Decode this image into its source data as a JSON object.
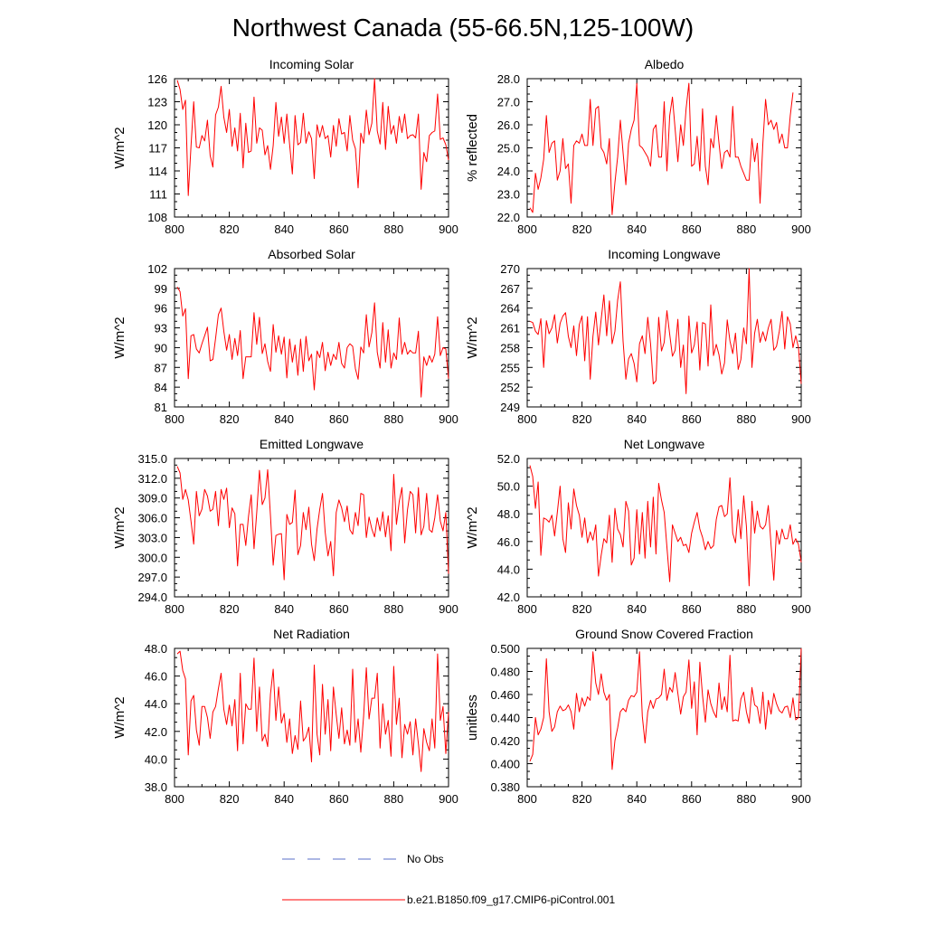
{
  "title": "Northwest Canada (55-66.5N,125-100W)",
  "legend": {
    "no_obs": {
      "label": "No Obs",
      "color": "#5a6fc8",
      "style": "dashed"
    },
    "model": {
      "label": "b.e21.B1850.f09_g17.CMIP6-piControl.001",
      "color": "#ff0000",
      "style": "solid"
    }
  },
  "chart_data": [
    {
      "type": "line",
      "title": "Incoming Solar",
      "xlabel": "",
      "ylabel": "W/m^2",
      "xlim": [
        800,
        900
      ],
      "ylim": [
        108,
        126
      ],
      "xticks": [
        800,
        820,
        840,
        860,
        880,
        900
      ],
      "xtick_labels": [
        "800",
        "820",
        "840",
        "860",
        "880",
        "900"
      ],
      "yticks": [
        108,
        111,
        114,
        117,
        120,
        123,
        126
      ],
      "ytick_labels": [
        "108",
        "111",
        "114",
        "117",
        "120",
        "123",
        "126"
      ],
      "x_start": 801,
      "values": [
        125.8,
        124.6,
        122.0,
        123.2,
        110.8,
        117.2,
        123.0,
        117.1,
        117.0,
        118.6,
        117.9,
        120.6,
        116.0,
        114.5,
        121.3,
        122.3,
        125.0,
        121.0,
        119.0,
        122.0,
        117.2,
        119.6,
        116.6,
        121.5,
        114.4,
        120.2,
        116.4,
        116.6,
        123.6,
        117.6,
        119.6,
        119.3,
        116.1,
        117.3,
        114.2,
        117.3,
        122.9,
        118.5,
        121.0,
        117.6,
        121.4,
        117.4,
        113.6,
        121.2,
        117.4,
        117.7,
        121.5,
        117.6,
        119.1,
        118.2,
        113.0,
        120.0,
        118.4,
        119.9,
        118.2,
        118.6,
        115.8,
        119.9,
        117.2,
        120.8,
        118.8,
        119.0,
        116.6,
        121.2,
        118.0,
        116.9,
        111.8,
        118.9,
        117.6,
        121.9,
        118.7,
        120.2,
        126.0,
        119.2,
        117.5,
        122.9,
        116.8,
        122.4,
        118.8,
        119.9,
        117.6,
        121.1,
        119.0,
        121.4,
        118.2,
        118.6,
        118.7,
        118.3,
        121.4,
        111.6,
        116.4,
        115.2,
        118.6,
        119.0,
        119.2,
        124.0,
        118.1,
        118.3,
        117.4,
        115.4
      ]
    },
    {
      "type": "line",
      "title": "Albedo",
      "xlabel": "",
      "ylabel": "% reflected",
      "xlim": [
        800,
        900
      ],
      "ylim": [
        22,
        28
      ],
      "xticks": [
        800,
        820,
        840,
        860,
        880,
        900
      ],
      "xtick_labels": [
        "800",
        "820",
        "840",
        "860",
        "880",
        "900"
      ],
      "yticks": [
        22,
        23,
        24,
        25,
        26,
        27,
        28
      ],
      "ytick_labels": [
        "22.0",
        "23.0",
        "24.0",
        "25.0",
        "26.0",
        "27.0",
        "28.0"
      ],
      "x_start": 801,
      "values": [
        22.4,
        22.2,
        23.9,
        23.2,
        23.7,
        24.5,
        26.4,
        24.8,
        25.2,
        25.3,
        23.6,
        24.0,
        25.4,
        24.1,
        24.3,
        22.6,
        25.1,
        25.3,
        25.2,
        25.6,
        25.1,
        25.1,
        27.1,
        25.1,
        26.7,
        26.8,
        25.0,
        24.8,
        24.3,
        25.4,
        22.1,
        23.5,
        24.6,
        26.2,
        24.8,
        23.4,
        25.2,
        25.8,
        26.2,
        27.8,
        25.1,
        25.0,
        24.8,
        24.6,
        24.2,
        25.8,
        26.0,
        24.6,
        24.6,
        27.0,
        24.0,
        26.4,
        27.2,
        25.8,
        24.4,
        26.0,
        25.1,
        26.7,
        27.8,
        24.2,
        24.3,
        25.5,
        24.0,
        26.7,
        24.2,
        23.4,
        25.4,
        25.0,
        26.4,
        25.2,
        24.1,
        24.8,
        24.9,
        24.6,
        26.8,
        24.6,
        24.6,
        24.2,
        23.9,
        23.6,
        23.6,
        25.4,
        24.4,
        25.2,
        22.6,
        25.2,
        27.1,
        26.0,
        26.2,
        25.8,
        26.1,
        25.2,
        25.6,
        25.0,
        25.0,
        26.4,
        27.4
      ]
    },
    {
      "type": "line",
      "title": "Absorbed Solar",
      "xlabel": "",
      "ylabel": "W/m^2",
      "xlim": [
        800,
        900
      ],
      "ylim": [
        81,
        102
      ],
      "xticks": [
        800,
        820,
        840,
        860,
        880,
        900
      ],
      "xtick_labels": [
        "800",
        "820",
        "840",
        "860",
        "880",
        "900"
      ],
      "yticks": [
        81,
        84,
        87,
        90,
        93,
        96,
        99,
        102
      ],
      "ytick_labels": [
        "81",
        "84",
        "87",
        "90",
        "93",
        "96",
        "99",
        "102"
      ],
      "x_start": 801,
      "values": [
        99.2,
        98.5,
        94.8,
        95.9,
        85.3,
        91.8,
        92.0,
        89.8,
        89.2,
        90.6,
        91.8,
        93.1,
        88.0,
        88.2,
        91.4,
        95.0,
        96.0,
        92.5,
        89.6,
        92.0,
        88.2,
        91.4,
        88.8,
        92.6,
        85.3,
        88.6,
        88.6,
        88.6,
        95.3,
        90.5,
        94.6,
        89.1,
        90.6,
        87.9,
        86.4,
        93.5,
        89.3,
        91.8,
        89.0,
        91.6,
        85.4,
        91.3,
        87.8,
        90.4,
        85.8,
        91.3,
        86.4,
        91.7,
        88.0,
        89.0,
        83.6,
        89.5,
        88.5,
        90.8,
        86.5,
        89.3,
        87.3,
        89.0,
        88.2,
        90.8,
        87.6,
        86.9,
        90.0,
        90.6,
        90.2,
        86.8,
        85.2,
        90.1,
        89.2,
        95.0,
        90.1,
        92.3,
        96.8,
        89.3,
        86.9,
        93.8,
        87.8,
        92.7,
        86.9,
        89.2,
        88.2,
        94.5,
        89.0,
        90.8,
        89.0,
        89.6,
        89.2,
        89.2,
        92.5,
        82.5,
        88.6,
        87.3,
        88.8,
        87.8,
        89.0,
        94.7,
        88.8,
        90.0,
        89.8,
        85.3
      ]
    },
    {
      "type": "line",
      "title": "Incoming Longwave",
      "xlabel": "",
      "ylabel": "W/m^2",
      "xlim": [
        800,
        900
      ],
      "ylim": [
        249,
        270
      ],
      "xticks": [
        800,
        820,
        840,
        860,
        880,
        900
      ],
      "xtick_labels": [
        "800",
        "820",
        "840",
        "860",
        "880",
        "900"
      ],
      "yticks": [
        249,
        252,
        255,
        258,
        261,
        264,
        267,
        270
      ],
      "ytick_labels": [
        "249",
        "252",
        "255",
        "258",
        "261",
        "264",
        "267",
        "270"
      ],
      "x_start": 801,
      "values": [
        262.0,
        261.8,
        260.5,
        260.0,
        262.4,
        255.0,
        262.1,
        260.1,
        261.0,
        263.0,
        258.7,
        261.7,
        262.8,
        263.3,
        259.7,
        258.0,
        261.3,
        256.8,
        261.5,
        262.8,
        256.0,
        262.7,
        253.2,
        259.7,
        263.4,
        258.4,
        262.3,
        266.0,
        259.8,
        265.1,
        258.6,
        260.5,
        265.2,
        268.0,
        259.0,
        253.2,
        256.3,
        257.1,
        255.6,
        252.8,
        258.6,
        259.8,
        257.1,
        262.6,
        258.6,
        252.5,
        253.0,
        262.6,
        257.5,
        258.8,
        263.6,
        260.0,
        256.7,
        257.6,
        262.3,
        255.0,
        258.4,
        251.0,
        262.8,
        257.2,
        258.4,
        261.9,
        254.6,
        261.8,
        261.6,
        255.2,
        264.5,
        256.8,
        258.5,
        256.9,
        254.0,
        255.7,
        262.2,
        259.0,
        257.1,
        260.2,
        254.7,
        256.2,
        261.0,
        258.6,
        270.0,
        255.0,
        260.2,
        262.3,
        258.8,
        260.4,
        259.0,
        261.0,
        262.3,
        257.6,
        258.2,
        260.5,
        263.5,
        257.8,
        262.7,
        261.6,
        258.0,
        259.8,
        258.0,
        252.5
      ]
    },
    {
      "type": "line",
      "title": "Emitted Longwave",
      "xlabel": "",
      "ylabel": "W/m^2",
      "xlim": [
        800,
        900
      ],
      "ylim": [
        294,
        315
      ],
      "xticks": [
        800,
        820,
        840,
        860,
        880,
        900
      ],
      "xtick_labels": [
        "800",
        "820",
        "840",
        "860",
        "880",
        "900"
      ],
      "yticks": [
        294,
        297,
        300,
        303,
        306,
        309,
        312,
        315
      ],
      "ytick_labels": [
        "294.0",
        "297.0",
        "300.0",
        "303.0",
        "306.0",
        "309.0",
        "312.0",
        "315.0"
      ],
      "x_start": 801,
      "values": [
        313.8,
        312.8,
        308.8,
        310.3,
        308.7,
        305.5,
        302.0,
        310.0,
        306.3,
        307.3,
        310.3,
        309.3,
        307.0,
        307.3,
        310.0,
        304.8,
        310.3,
        308.8,
        310.5,
        304.5,
        307.5,
        306.6,
        298.7,
        305.0,
        305.0,
        301.8,
        306.2,
        309.5,
        301.3,
        306.8,
        313.2,
        308.0,
        309.0,
        313.3,
        306.3,
        298.8,
        303.3,
        303.5,
        303.6,
        296.6,
        306.5,
        305.0,
        305.3,
        310.2,
        300.4,
        301.8,
        306.8,
        304.2,
        307.6,
        302.0,
        299.5,
        304.3,
        307.3,
        309.7,
        303.8,
        300.2,
        302.4,
        297.2,
        306.8,
        308.7,
        307.5,
        305.4,
        307.8,
        304.2,
        303.5,
        306.8,
        304.8,
        309.7,
        309.5,
        303.0,
        306.1,
        304.3,
        303.1,
        306.0,
        304.0,
        306.9,
        303.1,
        306.3,
        301.0,
        312.6,
        305.0,
        308.5,
        310.6,
        302.2,
        307.2,
        310.0,
        309.5,
        303.7,
        310.6,
        303.4,
        304.7,
        309.7,
        304.2,
        303.8,
        306.0,
        309.5,
        305.5,
        304.0,
        306.8,
        297.5
      ]
    },
    {
      "type": "line",
      "title": "Net Longwave",
      "xlabel": "",
      "ylabel": "W/m^2",
      "xlim": [
        800,
        900
      ],
      "ylim": [
        42,
        52
      ],
      "xticks": [
        800,
        820,
        840,
        860,
        880,
        900
      ],
      "xtick_labels": [
        "800",
        "820",
        "840",
        "860",
        "880",
        "900"
      ],
      "yticks": [
        42,
        44,
        46,
        48,
        50,
        52
      ],
      "ytick_labels": [
        "42.0",
        "44.0",
        "46.0",
        "48.0",
        "50.0",
        "52.0"
      ],
      "x_start": 801,
      "values": [
        51.5,
        50.7,
        48.4,
        50.3,
        45.0,
        47.7,
        47.6,
        47.4,
        47.9,
        46.4,
        48.1,
        50.0,
        46.2,
        45.2,
        48.8,
        46.9,
        49.8,
        48.6,
        47.9,
        46.3,
        47.7,
        45.9,
        46.7,
        46.1,
        47.2,
        43.5,
        45.0,
        46.2,
        45.9,
        47.9,
        44.5,
        48.4,
        46.9,
        46.5,
        45.6,
        48.9,
        48.2,
        44.3,
        44.8,
        48.3,
        45.1,
        48.1,
        44.8,
        48.9,
        45.6,
        49.2,
        45.1,
        50.2,
        49.0,
        48.1,
        45.6,
        43.1,
        47.2,
        46.6,
        46.0,
        46.3,
        45.7,
        45.8,
        45.2,
        46.6,
        47.4,
        48.1,
        46.9,
        46.3,
        45.4,
        46.0,
        45.5,
        45.7,
        47.6,
        48.5,
        48.6,
        47.8,
        48.0,
        50.6,
        46.6,
        45.9,
        48.3,
        46.2,
        49.3,
        47.1,
        42.8,
        48.9,
        46.6,
        48.2,
        47.1,
        46.9,
        47.2,
        48.6,
        45.7,
        43.2,
        46.8,
        45.8,
        46.9,
        46.2,
        46.2,
        47.2,
        45.8,
        46.2,
        45.8,
        44.5
      ]
    },
    {
      "type": "line",
      "title": "Net Radiation",
      "xlabel": "",
      "ylabel": "W/m^2",
      "xlim": [
        800,
        900
      ],
      "ylim": [
        38,
        48
      ],
      "xticks": [
        800,
        820,
        840,
        860,
        880,
        900
      ],
      "xtick_labels": [
        "800",
        "820",
        "840",
        "860",
        "880",
        "900"
      ],
      "yticks": [
        38,
        40,
        42,
        44,
        46,
        48
      ],
      "ytick_labels": [
        "38.0",
        "40.0",
        "42.0",
        "44.0",
        "46.0",
        "48.0"
      ],
      "x_start": 801,
      "values": [
        47.6,
        47.8,
        46.4,
        45.8,
        40.3,
        44.2,
        44.6,
        42.1,
        41.0,
        43.8,
        43.8,
        43.0,
        41.5,
        43.4,
        43.8,
        45.1,
        46.2,
        43.6,
        42.5,
        43.9,
        42.4,
        44.3,
        40.6,
        46.2,
        41.1,
        44.0,
        43.6,
        43.6,
        47.3,
        42.0,
        45.2,
        41.3,
        41.8,
        40.9,
        44.7,
        46.5,
        42.8,
        45.2,
        42.6,
        43.3,
        41.2,
        42.9,
        40.4,
        41.7,
        40.7,
        44.2,
        41.3,
        41.6,
        42.3,
        39.8,
        46.8,
        41.8,
        40.3,
        45.4,
        41.8,
        44.3,
        40.6,
        45.2,
        43.2,
        41.5,
        43.7,
        41.1,
        42.1,
        41.0,
        46.5,
        41.2,
        42.9,
        40.5,
        43.1,
        46.6,
        42.9,
        44.4,
        44.4,
        46.2,
        40.8,
        44.0,
        41.8,
        42.8,
        40.2,
        46.7,
        42.5,
        44.4,
        40.1,
        42.5,
        41.8,
        42.7,
        40.3,
        42.9,
        41.1,
        39.1,
        42.2,
        41.2,
        40.6,
        42.9,
        40.8,
        47.6,
        42.8,
        43.8,
        40.4,
        43.4
      ]
    },
    {
      "type": "line",
      "title": "Ground Snow Covered Fraction",
      "xlabel": "",
      "ylabel": "unitless",
      "xlim": [
        800,
        900
      ],
      "ylim": [
        0.38,
        0.5
      ],
      "xticks": [
        800,
        820,
        840,
        860,
        880,
        900
      ],
      "xtick_labels": [
        "800",
        "820",
        "840",
        "860",
        "880",
        "900"
      ],
      "yticks": [
        0.38,
        0.4,
        0.42,
        0.44,
        0.46,
        0.48,
        0.5
      ],
      "ytick_labels": [
        "0.380",
        "0.400",
        "0.420",
        "0.440",
        "0.460",
        "0.480",
        "0.500"
      ],
      "x_start": 801,
      "values": [
        0.402,
        0.408,
        0.44,
        0.425,
        0.43,
        0.44,
        0.491,
        0.445,
        0.428,
        0.432,
        0.445,
        0.45,
        0.446,
        0.447,
        0.451,
        0.445,
        0.43,
        0.461,
        0.445,
        0.457,
        0.45,
        0.458,
        0.455,
        0.497,
        0.47,
        0.46,
        0.478,
        0.462,
        0.455,
        0.46,
        0.395,
        0.42,
        0.431,
        0.445,
        0.448,
        0.445,
        0.455,
        0.459,
        0.458,
        0.462,
        0.497,
        0.441,
        0.418,
        0.445,
        0.455,
        0.448,
        0.456,
        0.457,
        0.46,
        0.482,
        0.455,
        0.466,
        0.462,
        0.479,
        0.461,
        0.443,
        0.458,
        0.462,
        0.49,
        0.448,
        0.471,
        0.425,
        0.488,
        0.459,
        0.436,
        0.464,
        0.452,
        0.445,
        0.44,
        0.47,
        0.447,
        0.458,
        0.445,
        0.494,
        0.437,
        0.438,
        0.437,
        0.456,
        0.462,
        0.445,
        0.435,
        0.466,
        0.451,
        0.449,
        0.435,
        0.462,
        0.43,
        0.455,
        0.443,
        0.461,
        0.452,
        0.446,
        0.444,
        0.449,
        0.45,
        0.44,
        0.457,
        0.438,
        0.44,
        0.5
      ]
    }
  ]
}
